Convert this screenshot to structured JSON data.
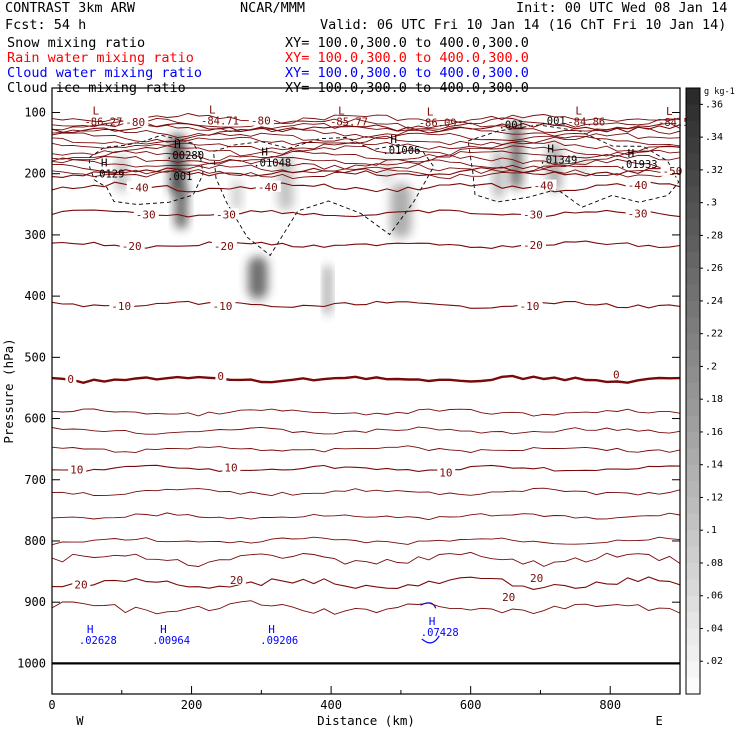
{
  "header": {
    "model": "CONTRAST   3km ARW",
    "org": "NCAR/MMM",
    "init": "Init: 00 UTC Wed 08 Jan 14",
    "fcst": "Fcst:   54 h",
    "valid": "Valid: 06 UTC Fri 10 Jan 14 (16 ChT Fri 10 Jan 14)",
    "fields": [
      {
        "name": "Snow mixing ratio",
        "xy": "XY= 100.0,300.0 to 400.0,300.0",
        "color": "#000000"
      },
      {
        "name": "Rain water mixing ratio",
        "xy": "XY= 100.0,300.0 to 400.0,300.0",
        "color": "#ff0000"
      },
      {
        "name": "Cloud water mixing ratio",
        "xy": "XY= 100.0,300.0 to 400.0,300.0",
        "color": "#0000ff"
      },
      {
        "name": "Cloud ice mixing ratio",
        "xy": "XY= 100.0,300.0 to 400.0,300.0",
        "color": "#000000"
      }
    ]
  },
  "chart_data": {
    "type": "contour",
    "xlabel": "Distance (km)",
    "ylabel": "Pressure (hPa)",
    "xlim": [
      0,
      900
    ],
    "ylim": [
      1050,
      60
    ],
    "xticks": [
      0,
      200,
      400,
      600,
      800
    ],
    "yticks": [
      100,
      200,
      300,
      400,
      500,
      600,
      700,
      800,
      900,
      1000
    ],
    "x_endpoints": {
      "left": "W",
      "right": "E"
    },
    "temperature_contours": {
      "color": "#7a0a0a",
      "levels": [
        {
          "label": "-80",
          "p": 125
        },
        {
          "label": "-50",
          "p": 198
        },
        {
          "label": "-40",
          "p": 222
        },
        {
          "label": "-30",
          "p": 265
        },
        {
          "label": "-20",
          "p": 316
        },
        {
          "label": "-10",
          "p": 414
        },
        {
          "label": "0",
          "p": 536
        },
        {
          "label": "10",
          "p": 682
        },
        {
          "label": "20",
          "p": 870
        }
      ],
      "level_labels": [
        {
          "text": "-80",
          "x": 105,
          "p": 117
        },
        {
          "text": "-80",
          "x": 285,
          "p": 115
        },
        {
          "text": "-50",
          "x": 875,
          "p": 197
        },
        {
          "text": "-40",
          "x": 110,
          "p": 224
        },
        {
          "text": "-40",
          "x": 295,
          "p": 223
        },
        {
          "text": "-40",
          "x": 690,
          "p": 221
        },
        {
          "text": "-40",
          "x": 825,
          "p": 220
        },
        {
          "text": "-30",
          "x": 120,
          "p": 268
        },
        {
          "text": "-30",
          "x": 235,
          "p": 268
        },
        {
          "text": "-30",
          "x": 675,
          "p": 268
        },
        {
          "text": "-30",
          "x": 825,
          "p": 267
        },
        {
          "text": "-20",
          "x": 100,
          "p": 320
        },
        {
          "text": "-20",
          "x": 232,
          "p": 320
        },
        {
          "text": "-20",
          "x": 675,
          "p": 318
        },
        {
          "text": "-10",
          "x": 85,
          "p": 418
        },
        {
          "text": "-10",
          "x": 230,
          "p": 418
        },
        {
          "text": "-10",
          "x": 670,
          "p": 418
        },
        {
          "text": "0",
          "x": 22,
          "p": 537
        },
        {
          "text": "0",
          "x": 237,
          "p": 532
        },
        {
          "text": "0",
          "x": 804,
          "p": 530
        },
        {
          "text": "10",
          "x": 26,
          "p": 685
        },
        {
          "text": "10",
          "x": 247,
          "p": 682
        },
        {
          "text": "10",
          "x": 555,
          "p": 690
        },
        {
          "text": "20",
          "x": 32,
          "p": 873
        },
        {
          "text": "20",
          "x": 255,
          "p": 865
        },
        {
          "text": "20",
          "x": 645,
          "p": 893
        },
        {
          "text": "20",
          "x": 685,
          "p": 862
        }
      ]
    },
    "extrema": [
      {
        "type": "L",
        "value": "-86.27",
        "x": 58,
        "p": 103
      },
      {
        "type": "L",
        "value": "-84.71",
        "x": 225,
        "p": 102
      },
      {
        "type": "L",
        "value": "-85.77",
        "x": 410,
        "p": 103
      },
      {
        "type": "L",
        "value": "-86.09",
        "x": 537,
        "p": 105
      },
      {
        "type": "L",
        "value": "-84.86",
        "x": 750,
        "p": 103
      },
      {
        "type": "L",
        "value": "-84.51",
        "x": 880,
        "p": 104
      },
      {
        "type": "H",
        "value": ".0129",
        "x": 70,
        "p": 188
      },
      {
        "type": "H",
        "value": ".00280",
        "x": 175,
        "p": 158
      },
      {
        "type": "H",
        "value": ".01048",
        "x": 300,
        "p": 170
      },
      {
        "type": "H",
        "value": ".01006",
        "x": 485,
        "p": 150
      },
      {
        "type": "H",
        "value": ".01349",
        "x": 710,
        "p": 165
      },
      {
        "type": "H",
        "value": ".01933",
        "x": 825,
        "p": 173
      },
      {
        "type": "H",
        "value": ".02628",
        "x": 50,
        "p": 950
      },
      {
        "type": "H",
        "value": ".00964",
        "x": 155,
        "p": 950
      },
      {
        "type": "H",
        "value": ".09206",
        "x": 310,
        "p": 950
      },
      {
        "type": "H",
        "value": ".07428",
        "x": 540,
        "p": 937
      }
    ],
    "cloud_ice_labels": [
      {
        "text": ".001",
        "x": 165,
        "p": 210
      },
      {
        "text": ".001",
        "x": 640,
        "p": 126
      },
      {
        "text": ".001",
        "x": 700,
        "p": 120
      }
    ],
    "colorbar": {
      "unit": "g kg-1",
      "ticks": [
        ".36",
        ".34",
        ".32",
        ".3",
        ".28",
        ".26",
        ".24",
        ".22",
        ".2",
        ".18",
        ".16",
        ".14",
        ".12",
        ".1",
        ".08",
        ".06",
        ".04",
        ".02"
      ],
      "range": [
        0,
        0.37
      ]
    },
    "gray_cells": [
      {
        "x": 180,
        "p": 185,
        "w": 22,
        "h": 100,
        "v": 0.35
      },
      {
        "x": 185,
        "p": 255,
        "w": 18,
        "h": 70,
        "v": 0.3
      },
      {
        "x": 100,
        "p": 200,
        "w": 14,
        "h": 60,
        "v": 0.14
      },
      {
        "x": 265,
        "p": 235,
        "w": 14,
        "h": 50,
        "v": 0.1
      },
      {
        "x": 295,
        "p": 370,
        "w": 28,
        "h": 70,
        "v": 0.28
      },
      {
        "x": 335,
        "p": 215,
        "w": 22,
        "h": 90,
        "v": 0.12
      },
      {
        "x": 395,
        "p": 390,
        "w": 10,
        "h": 80,
        "v": 0.2
      },
      {
        "x": 500,
        "p": 260,
        "w": 30,
        "h": 90,
        "v": 0.16
      },
      {
        "x": 480,
        "p": 195,
        "w": 16,
        "h": 40,
        "v": 0.08
      },
      {
        "x": 640,
        "p": 200,
        "w": 14,
        "h": 80,
        "v": 0.16
      },
      {
        "x": 665,
        "p": 170,
        "w": 18,
        "h": 110,
        "v": 0.27
      },
      {
        "x": 720,
        "p": 190,
        "w": 20,
        "h": 80,
        "v": 0.16
      },
      {
        "x": 760,
        "p": 185,
        "w": 12,
        "h": 40,
        "v": 0.08
      }
    ]
  }
}
